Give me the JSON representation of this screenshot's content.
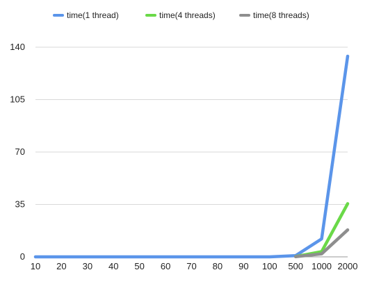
{
  "chart_data": {
    "type": "line",
    "title": "",
    "xlabel": "",
    "ylabel": "",
    "categories": [
      "10",
      "20",
      "30",
      "40",
      "50",
      "60",
      "70",
      "80",
      "90",
      "100",
      "500",
      "1000",
      "2000"
    ],
    "y_ticks": [
      0,
      35,
      70,
      105,
      140
    ],
    "ylim": [
      0,
      140
    ],
    "grid": true,
    "legend_position": "top",
    "series": [
      {
        "name": "time(1 thread)",
        "color": "#5b95ea",
        "values": [
          0,
          0,
          0,
          0,
          0,
          0,
          0,
          0,
          0,
          0,
          0.8,
          12,
          134
        ]
      },
      {
        "name": "time(4 threads)",
        "color": "#6ad948",
        "values": [
          null,
          null,
          null,
          null,
          null,
          null,
          null,
          null,
          null,
          null,
          0.2,
          3.5,
          35.5
        ]
      },
      {
        "name": "time(8 threads)",
        "color": "#8e8e8e",
        "values": [
          null,
          null,
          null,
          null,
          null,
          null,
          null,
          null,
          null,
          null,
          0.1,
          2,
          18
        ]
      }
    ]
  }
}
